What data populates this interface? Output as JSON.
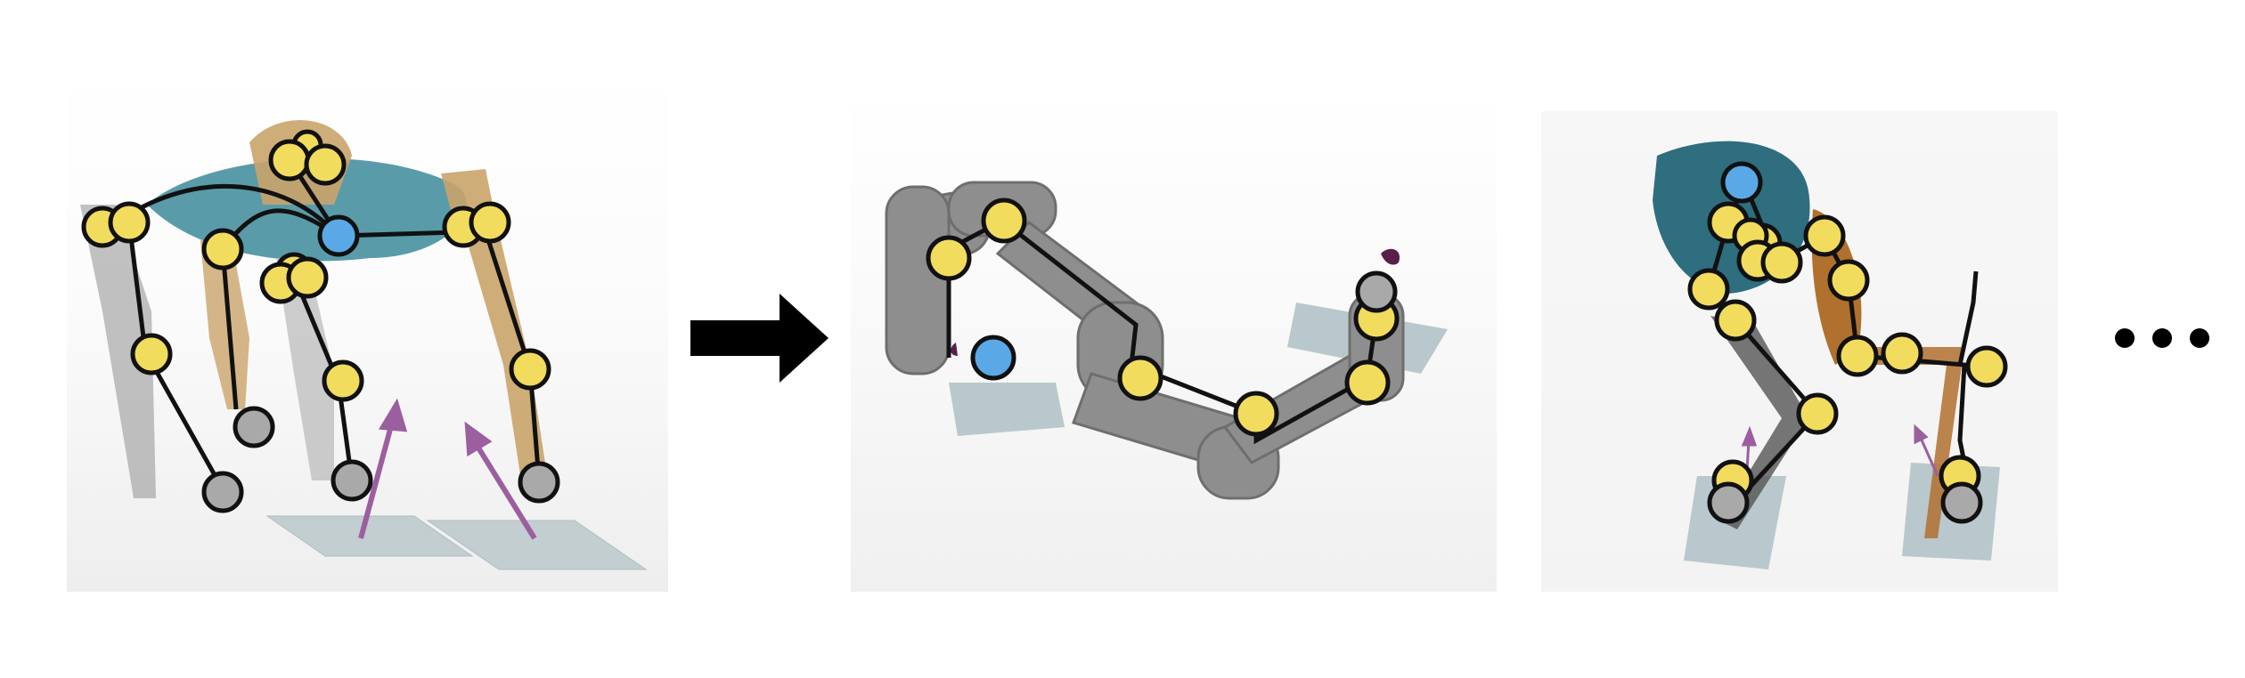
{
  "figure": {
    "colors": {
      "joint_node": "#F2DC5D",
      "root_node": "#5AA9E6",
      "end_effector_node": "#A9A9A9",
      "node_outline": "#111111",
      "skeleton_edge": "#111111",
      "force_arrow": "#9B5FA0",
      "contact_plate": "#B9C8CC",
      "quadruped_body": "#3D8A9A",
      "quadruped_leg": "#C9A46A",
      "arm_body": "#8E8E8E",
      "biped_torso": "#2E6E7E",
      "biped_leg": "#B0702E"
    },
    "panels": [
      {
        "id": "quadruped",
        "description_icon": "quadruped-robot-graph"
      },
      {
        "id": "manipulator-arm",
        "description_icon": "robot-arm-graph"
      },
      {
        "id": "biped",
        "description_icon": "biped-robot-graph"
      }
    ],
    "transition_icon": "right-arrow-icon",
    "continuation_icon": "ellipsis-icon"
  }
}
